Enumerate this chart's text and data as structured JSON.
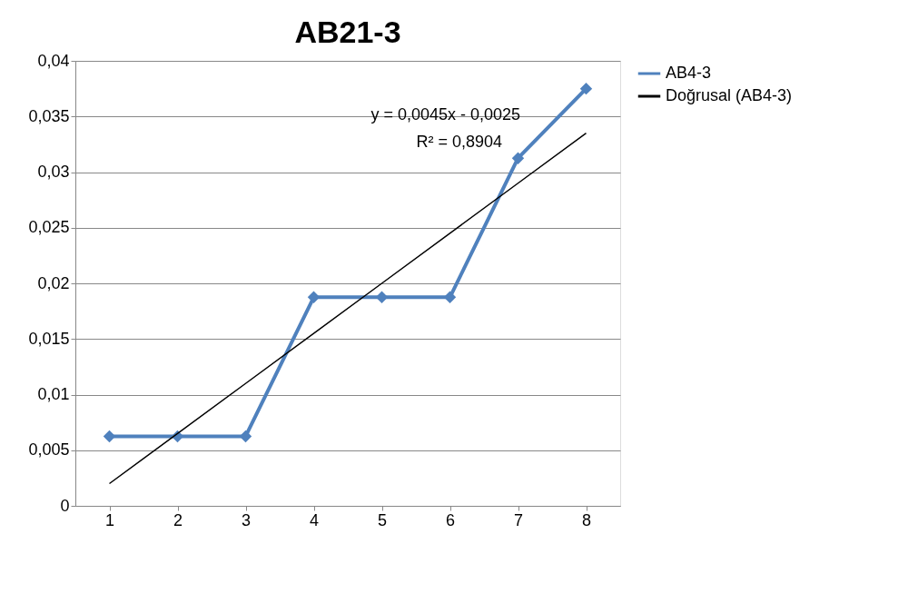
{
  "chart_data": {
    "type": "line",
    "title": "AB21-3",
    "categories": [
      "1",
      "2",
      "3",
      "4",
      "5",
      "6",
      "7",
      "8"
    ],
    "series": [
      {
        "name": "AB4-3",
        "color": "#4f81bd",
        "marker": "diamond",
        "values": [
          0.00625,
          0.00625,
          0.00625,
          0.01875,
          0.01875,
          0.01875,
          0.03125,
          0.0375
        ]
      },
      {
        "name": "Doğrusal (AB4-3)",
        "color": "#000000",
        "marker": "none",
        "values": [
          0.002,
          0.0065,
          0.011,
          0.0155,
          0.02,
          0.0245,
          0.029,
          0.0335
        ]
      }
    ],
    "ylim": [
      0,
      0.04
    ],
    "yticks": [
      0,
      {
        "value": 0.005,
        "label": "0,005"
      },
      {
        "value": 0.01,
        "label": "0,01"
      },
      {
        "value": 0.015,
        "label": "0,015"
      },
      {
        "value": 0.02,
        "label": "0,02"
      },
      {
        "value": 0.025,
        "label": "0,025"
      },
      {
        "value": 0.03,
        "label": "0,03"
      },
      {
        "value": 0.035,
        "label": "0,035"
      },
      {
        "value": 0.04,
        "label": "0,04"
      }
    ],
    "annotations": [
      "y = 0,0045x - 0,0025",
      "R² = 0,8904"
    ],
    "grid": "y",
    "legend": "right",
    "line_style": "solid"
  }
}
